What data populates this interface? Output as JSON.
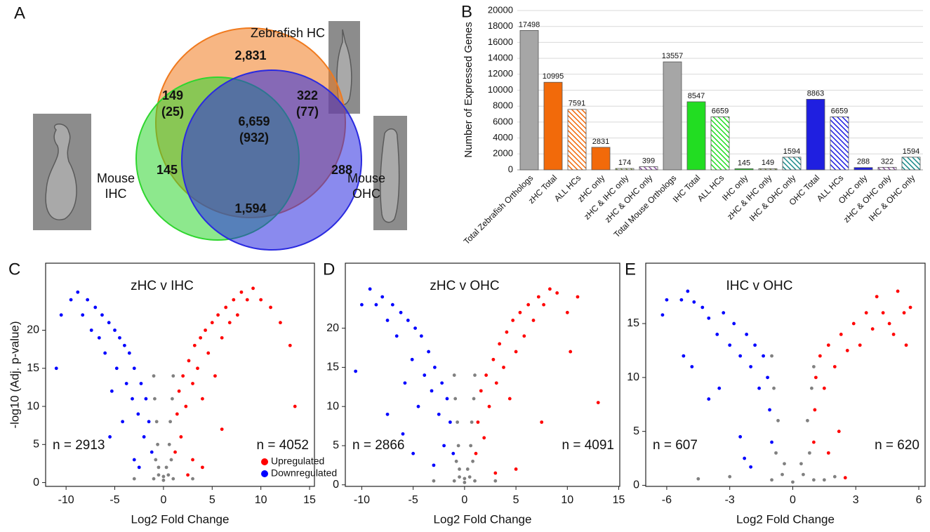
{
  "chart_data": [
    {
      "type": "venn",
      "panel_label": "A",
      "sets": [
        {
          "name": "Zebrafish HC",
          "color": "#f07a1e"
        },
        {
          "name": "Mouse IHC",
          "color": "#2fd62f"
        },
        {
          "name": "Mouse OHC",
          "color": "#2a2ae0"
        }
      ],
      "values": [
        2831,
        149,
        322,
        6659,
        145,
        288,
        1594
      ],
      "value_labels": [
        "2,831",
        "149",
        "322",
        "6,659",
        "145",
        "288",
        "1,594"
      ],
      "sub_values": [
        null,
        25,
        77,
        932,
        null,
        null,
        null
      ],
      "sub_value_labels": [
        null,
        "(25)",
        "(77)",
        "(932)",
        null,
        null,
        null
      ]
    },
    {
      "type": "bar",
      "panel_label": "B",
      "ylabel": "Number of Expressed Genes",
      "categories": [
        "Total Zebrafish Orthologs",
        "zHC Total",
        "ALL HCs",
        "zHC only",
        "zHC & IHC only",
        "zHC & OHC only",
        "Total Mouse Orthologs",
        "IHC Total",
        "ALL HCs",
        "IHC only",
        "zHC & IHC only",
        "IHC & OHC only",
        "OHC Total",
        "ALL HCs",
        "OHC only",
        "zHC & OHC only",
        "IHC & OHC only"
      ],
      "values": [
        17498,
        10995,
        7591,
        2831,
        174,
        399,
        13557,
        8547,
        6659,
        145,
        149,
        1594,
        8863,
        6659,
        288,
        322,
        1594
      ],
      "colors": [
        "#a6a6a6",
        "#f26a0a",
        "#f26a0a",
        "#f26a0a",
        "#7a9a2a",
        "#8a4fa0",
        "#a6a6a6",
        "#22dd22",
        "#22dd22",
        "#22dd22",
        "#7a9a2a",
        "#1a8a8a",
        "#1f1fe0",
        "#1f1fe0",
        "#1f1fe0",
        "#8a4fa0",
        "#1a8a8a"
      ],
      "patterns": [
        "solid",
        "solid",
        "hatched",
        "solid",
        "hatched",
        "hatched",
        "solid",
        "solid",
        "hatched",
        "solid",
        "hatched",
        "hatched",
        "solid",
        "hatched",
        "solid",
        "hatched",
        "hatched"
      ],
      "ylim": [
        0,
        20000
      ],
      "yticks": [
        0,
        2000,
        4000,
        6000,
        8000,
        10000,
        12000,
        14000,
        16000,
        18000,
        20000
      ],
      "grid": true
    },
    {
      "type": "scatter",
      "panel_label": "C",
      "title": "zHC v IHC",
      "xlabel": "Log2 Fold Change",
      "ylabel": "-log10 (Adj. p-value)",
      "xlim": [
        -12.1,
        15.5
      ],
      "ylim": [
        -0.5,
        28.8
      ],
      "xticks": [
        -10,
        -5,
        0,
        5,
        10,
        15
      ],
      "yticks": [
        0,
        5,
        10,
        15,
        20
      ],
      "annotations": [
        "n = 2913",
        "n = 4052"
      ],
      "legend": "bottom-right",
      "series": [
        {
          "name": "Upregulated",
          "color": "#ff0000",
          "x": [
            1.2,
            1.4,
            1.6,
            1.8,
            2,
            2.3,
            2.6,
            3,
            3.2,
            3.5,
            3.8,
            4,
            4.3,
            4.6,
            5,
            5.3,
            5.6,
            6,
            6.4,
            6.8,
            7.2,
            7.6,
            8,
            8.6,
            9.2,
            10,
            11,
            12,
            13,
            13.5,
            2.5,
            3,
            4,
            6
          ],
          "y": [
            4,
            9,
            12,
            6,
            14,
            10,
            16,
            13,
            18,
            15,
            19,
            11,
            20,
            17,
            21,
            14,
            22,
            19,
            23,
            21,
            24,
            22,
            25,
            24,
            25.5,
            24,
            23,
            21,
            18,
            10,
            1,
            3,
            2,
            7
          ]
        },
        {
          "name": "Downregulated",
          "color": "#0000ff",
          "x": [
            -1.2,
            -1.5,
            -1.8,
            -2,
            -2.3,
            -2.6,
            -3,
            -3.2,
            -3.5,
            -3.8,
            -4,
            -4.2,
            -4.5,
            -4.8,
            -5,
            -5.3,
            -5.6,
            -6,
            -6.3,
            -6.6,
            -7,
            -7.4,
            -7.8,
            -8.3,
            -8.8,
            -9.5,
            -10.5,
            -11,
            -3,
            -5.5,
            -2.5
          ],
          "y": [
            4,
            8,
            11,
            6,
            13,
            9,
            15,
            11,
            17,
            13,
            18,
            8,
            19,
            15,
            20,
            12,
            21,
            17,
            22,
            19,
            23,
            20,
            24,
            22,
            25,
            24,
            22,
            15,
            3,
            6,
            2
          ]
        },
        {
          "color": "#808080",
          "x": [
            -1,
            -0.5,
            0,
            0.5,
            1,
            -0.8,
            0.8,
            -0.6,
            0.6,
            -0.7,
            0.7,
            -0.9,
            0.9,
            -0.5,
            0.3,
            -3,
            3,
            -1,
            1,
            0
          ],
          "y": [
            0.5,
            1,
            0.3,
            1,
            0.5,
            3,
            3,
            5,
            5,
            8,
            8,
            11,
            11,
            2,
            2,
            0.5,
            0.5,
            14,
            14,
            0.8
          ]
        }
      ]
    },
    {
      "type": "scatter",
      "panel_label": "D",
      "title": "zHC v OHC",
      "xlabel": "Log2 Fold Change",
      "xlim": [
        -11.6,
        15.1
      ],
      "ylim": [
        -0.2,
        28.3
      ],
      "xticks": [
        -10,
        -5,
        0,
        5,
        10,
        15
      ],
      "yticks": [
        0,
        5,
        10,
        15,
        20
      ],
      "annotations": [
        "n = 2866",
        "n = 4091"
      ],
      "series": [
        {
          "color": "#ff0000",
          "x": [
            1.1,
            1.3,
            1.6,
            1.9,
            2.1,
            2.4,
            2.8,
            3.1,
            3.4,
            3.8,
            4.1,
            4.4,
            4.7,
            5,
            5.4,
            5.8,
            6.2,
            6.7,
            7.2,
            7.7,
            8.3,
            9,
            10,
            11,
            10.3,
            13,
            5,
            3,
            7.5
          ],
          "y": [
            4,
            8,
            12,
            6,
            14,
            10,
            16,
            13,
            18,
            15,
            19.5,
            11,
            21,
            17,
            22,
            19,
            23,
            21,
            24,
            23,
            25,
            24.5,
            22,
            24,
            17,
            10.5,
            2,
            1.5,
            8
          ]
        },
        {
          "color": "#0000ff",
          "x": [
            -1.1,
            -1.4,
            -1.7,
            -2,
            -2.2,
            -2.5,
            -2.9,
            -3.2,
            -3.5,
            -3.9,
            -4.2,
            -4.5,
            -4.8,
            -5.1,
            -5.5,
            -5.8,
            -6.2,
            -6.6,
            -7,
            -7.5,
            -8,
            -8.6,
            -9.2,
            -10,
            -10.6,
            -7.5,
            -5,
            -3,
            -6
          ],
          "y": [
            4,
            8,
            11,
            5,
            13,
            9,
            15,
            12,
            17,
            14,
            19,
            10,
            20,
            16,
            21,
            13,
            22,
            19,
            23,
            21,
            24,
            23,
            25,
            23,
            14.5,
            9,
            4,
            2.5,
            6.5
          ]
        },
        {
          "color": "#808080",
          "x": [
            -1,
            -0.5,
            0,
            0.5,
            1,
            -0.8,
            0.8,
            -0.6,
            0.6,
            -0.7,
            0.7,
            -0.9,
            0.9,
            -0.5,
            0.3,
            -3,
            3,
            -1,
            1,
            0
          ],
          "y": [
            0.5,
            1,
            0.3,
            1,
            0.5,
            3,
            3,
            5,
            5,
            8,
            8,
            11,
            11,
            2,
            2,
            0.5,
            0.5,
            14,
            14,
            0.8
          ]
        }
      ]
    },
    {
      "type": "scatter",
      "panel_label": "E",
      "title": "IHC v OHC",
      "xlabel": "Log2 Fold Change",
      "xlim": [
        -7,
        6.3
      ],
      "ylim": [
        -0.1,
        20.6
      ],
      "xticks": [
        -6,
        -3,
        0,
        3,
        6
      ],
      "yticks": [
        0,
        5,
        10,
        15
      ],
      "annotations": [
        "n = 607",
        "n = 620"
      ],
      "series": [
        {
          "color": "#ff0000",
          "x": [
            1,
            1.05,
            1.1,
            1.3,
            1.5,
            1.7,
            2,
            2.3,
            2.6,
            2.9,
            3.2,
            3.5,
            3.8,
            4,
            4.3,
            4.6,
            5,
            5.3,
            5.6,
            5.4,
            4.8,
            2.2,
            1.7,
            2.5
          ],
          "y": [
            4,
            7,
            10,
            12,
            9,
            13,
            11,
            14,
            12.5,
            15,
            13,
            16,
            14.5,
            17.5,
            16,
            15,
            18,
            16,
            16.5,
            13,
            14,
            5,
            3,
            0.7
          ]
        },
        {
          "color": "#0000ff",
          "x": [
            -1,
            -1.1,
            -1.2,
            -1.4,
            -1.6,
            -1.8,
            -2,
            -2.2,
            -2.5,
            -2.8,
            -3,
            -3.3,
            -3.6,
            -4,
            -4.3,
            -4.7,
            -5,
            -5.3,
            -6,
            -6.2,
            -5.2,
            -4.8,
            -3.5,
            -2.5,
            -2,
            -2.3,
            -4
          ],
          "y": [
            4,
            7,
            10,
            12,
            9,
            13,
            11,
            14,
            12,
            15,
            13,
            16,
            14,
            15.5,
            16.5,
            17,
            18,
            17.2,
            17.2,
            15.8,
            12,
            11,
            9,
            4.5,
            1.7,
            2.5,
            8
          ]
        },
        {
          "color": "#808080",
          "x": [
            -1,
            -0.5,
            0,
            0.5,
            1,
            -0.8,
            0.8,
            -0.7,
            0.7,
            -0.9,
            0.9,
            -1,
            1,
            -3,
            2,
            -4.5,
            1.5,
            -0.4,
            0.4
          ],
          "y": [
            0.5,
            1,
            0.3,
            1,
            0.5,
            3,
            3,
            6,
            6,
            9,
            9,
            12,
            11,
            0.8,
            0.8,
            0.6,
            0.5,
            2,
            2
          ]
        }
      ]
    }
  ]
}
